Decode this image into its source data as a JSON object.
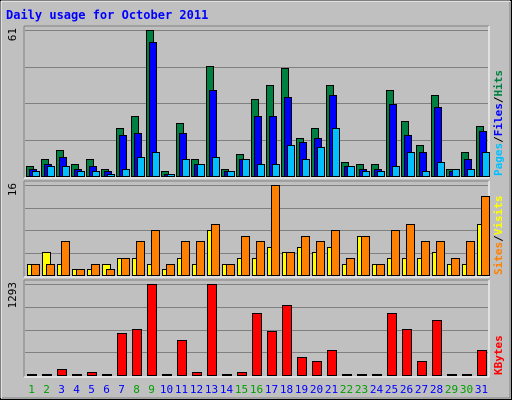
{
  "chart_data": [
    {
      "type": "bar",
      "title": "Daily usage for October 2011",
      "categories": [
        "1",
        "2",
        "3",
        "4",
        "5",
        "6",
        "7",
        "8",
        "9",
        "10",
        "11",
        "12",
        "13",
        "14",
        "15",
        "16",
        "17",
        "18",
        "19",
        "20",
        "21",
        "22",
        "23",
        "24",
        "25",
        "26",
        "27",
        "28",
        "29",
        "30",
        "31"
      ],
      "weekend_days": [
        "1",
        "2",
        "8",
        "9",
        "15",
        "16",
        "22",
        "23",
        "29",
        "30"
      ],
      "ylim": [
        0,
        61
      ],
      "max_label": "61",
      "axis_label_parts": [
        "Pages",
        "/",
        "Files",
        "/",
        "Hits"
      ],
      "series": [
        {
          "name": "Hits",
          "color": "#008040",
          "values": [
            4,
            7,
            11,
            5,
            7,
            3,
            20,
            25,
            61,
            2,
            22,
            7,
            46,
            3,
            9,
            32,
            38,
            45,
            16,
            20,
            38,
            6,
            5,
            5,
            36,
            23,
            13,
            34,
            3,
            10,
            21
          ]
        },
        {
          "name": "Files",
          "color": "#0000ff",
          "values": [
            3,
            5,
            8,
            3,
            4,
            2,
            17,
            18,
            56,
            1,
            18,
            5,
            36,
            2,
            7,
            25,
            25,
            33,
            14,
            16,
            34,
            4,
            3,
            3,
            30,
            17,
            10,
            29,
            2,
            7,
            19
          ]
        },
        {
          "name": "Pages",
          "color": "#00c0ff",
          "values": [
            2,
            4,
            4,
            2,
            2,
            1,
            3,
            8,
            10,
            1,
            7,
            5,
            8,
            2,
            7,
            5,
            5,
            13,
            7,
            12,
            20,
            4,
            2,
            2,
            4,
            10,
            2,
            6,
            3,
            3,
            10
          ]
        }
      ]
    },
    {
      "type": "bar",
      "ylim": [
        0,
        16
      ],
      "max_label": "16",
      "axis_label_parts": [
        "Sites",
        "/",
        "Visits"
      ],
      "series": [
        {
          "name": "Visits",
          "color": "#ffff00",
          "values": [
            2,
            4,
            2,
            1,
            1,
            2,
            3,
            3,
            2,
            1,
            3,
            2,
            8,
            2,
            3,
            3,
            5,
            4,
            5,
            4,
            5,
            2,
            7,
            2,
            3,
            3,
            3,
            4,
            2,
            2,
            9
          ]
        },
        {
          "name": "Sites",
          "color": "#ff8000",
          "values": [
            2,
            2,
            6,
            1,
            2,
            1,
            3,
            6,
            8,
            2,
            6,
            6,
            9,
            2,
            7,
            6,
            16,
            4,
            7,
            6,
            8,
            3,
            7,
            2,
            8,
            9,
            6,
            6,
            3,
            6,
            14
          ]
        }
      ]
    },
    {
      "type": "bar",
      "ylim": [
        0,
        1293
      ],
      "max_label": "1293",
      "axis_label_parts": [
        "KBytes"
      ],
      "series": [
        {
          "name": "KBytes",
          "color": "#ff0000",
          "values": [
            20,
            20,
            90,
            20,
            40,
            20,
            600,
            650,
            1293,
            20,
            500,
            40,
            1293,
            20,
            40,
            880,
            620,
            1000,
            250,
            200,
            360,
            20,
            20,
            20,
            880,
            650,
            200,
            780,
            20,
            20,
            350
          ]
        }
      ]
    }
  ],
  "colors": {
    "background": "#c0c0c0",
    "weekday_label": "#0000ff",
    "weekend_label": "#00a000",
    "title": "#0000ff"
  }
}
